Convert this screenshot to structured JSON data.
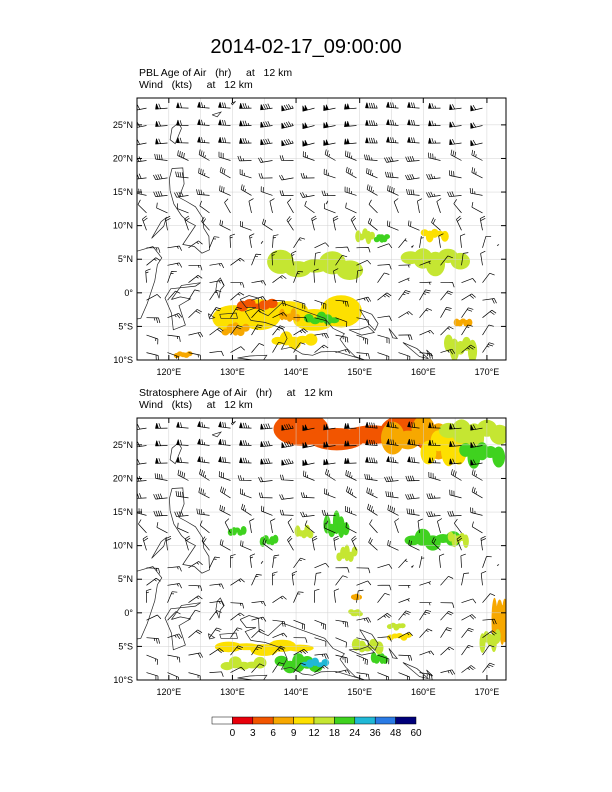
{
  "title": "2014-02-17_09:00:00",
  "chart_data": [
    {
      "type": "heatmap",
      "title": "PBL Age of Air   (hr)     at   12 km",
      "subtitle": "Wind   (kts)     at   12 km",
      "x_tick_labels": [
        "120°E",
        "130°E",
        "140°E",
        "150°E",
        "160°E",
        "170°E"
      ],
      "x_ticks": [
        120,
        130,
        140,
        150,
        160,
        170
      ],
      "y_tick_labels": [
        "10°S",
        "5°S",
        "0°",
        "5°N",
        "10°N",
        "15°N",
        "20°N",
        "25°N"
      ],
      "y_ticks": [
        -10,
        -5,
        0,
        5,
        10,
        15,
        20,
        25
      ],
      "xlim": [
        115,
        173
      ],
      "ylim": [
        -10,
        29
      ],
      "grid": true,
      "regions": [
        {
          "lon": [
            136.2,
            149.8
          ],
          "lat": [
            2.2,
            5.8
          ],
          "age_hr": 12
        },
        {
          "lon": [
            149.5,
            152.2
          ],
          "lat": [
            7.5,
            9.5
          ],
          "age_hr": 12
        },
        {
          "lon": [
            152.5,
            154.5
          ],
          "lat": [
            7.5,
            8.8
          ],
          "age_hr": 18
        },
        {
          "lon": [
            157.0,
            166.8
          ],
          "lat": [
            3.0,
            6.8
          ],
          "age_hr": 12
        },
        {
          "lon": [
            159.8,
            163.8
          ],
          "lat": [
            7.8,
            9.6
          ],
          "age_hr": 9
        },
        {
          "lon": [
            128.0,
            149.2
          ],
          "lat": [
            -5.6,
            -0.8
          ],
          "age_hr": 9
        },
        {
          "lon": [
            131.0,
            136.8
          ],
          "lat": [
            -2.6,
            -1.0
          ],
          "age_hr": 3
        },
        {
          "lon": [
            137.5,
            140.5
          ],
          "lat": [
            -4.4,
            -2.6
          ],
          "age_hr": 6
        },
        {
          "lon": [
            141.5,
            146.5
          ],
          "lat": [
            -4.8,
            -3.0
          ],
          "age_hr": 18
        },
        {
          "lon": [
            128.5,
            132.5
          ],
          "lat": [
            -6.5,
            -4.5
          ],
          "age_hr": 6
        },
        {
          "lon": [
            136.5,
            143.0
          ],
          "lat": [
            -8.2,
            -6.0
          ],
          "age_hr": 9
        },
        {
          "lon": [
            163.5,
            168.2
          ],
          "lat": [
            -9.8,
            -6.4
          ],
          "age_hr": 12
        },
        {
          "lon": [
            165.0,
            167.5
          ],
          "lat": [
            -5.0,
            -3.8
          ],
          "age_hr": 6
        },
        {
          "lon": [
            121.0,
            123.5
          ],
          "lat": [
            -9.6,
            -8.8
          ],
          "age_hr": 6
        }
      ]
    },
    {
      "type": "heatmap",
      "title": "Stratosphere Age of Air   (hr)     at   12 km",
      "subtitle": "Wind   (kts)     at   12 km",
      "x_tick_labels": [
        "120°E",
        "130°E",
        "140°E",
        "150°E",
        "160°E",
        "170°E"
      ],
      "x_ticks": [
        120,
        130,
        140,
        150,
        160,
        170
      ],
      "y_tick_labels": [
        "10°S",
        "5°S",
        "0°",
        "5°N",
        "10°N",
        "15°N",
        "20°N",
        "25°N"
      ],
      "y_ticks": [
        -10,
        -5,
        0,
        5,
        10,
        15,
        20,
        25
      ],
      "xlim": [
        115,
        173
      ],
      "ylim": [
        -10,
        29
      ],
      "grid": true,
      "regions": [
        {
          "lon": [
            138.0,
            166.0
          ],
          "lat": [
            24.0,
            29.0
          ],
          "age_hr": 3
        },
        {
          "lon": [
            154.0,
            166.0
          ],
          "lat": [
            23.5,
            29.0
          ],
          "age_hr": 6
        },
        {
          "lon": [
            160.0,
            168.0
          ],
          "lat": [
            22.0,
            27.5
          ],
          "age_hr": 9
        },
        {
          "lon": [
            163.0,
            173.0
          ],
          "lat": [
            24.5,
            29.0
          ],
          "age_hr": 12
        },
        {
          "lon": [
            166.0,
            172.5
          ],
          "lat": [
            22.0,
            25.5
          ],
          "age_hr": 18
        },
        {
          "lon": [
            129.5,
            132.0
          ],
          "lat": [
            11.5,
            12.8
          ],
          "age_hr": 18
        },
        {
          "lon": [
            134.5,
            137.0
          ],
          "lat": [
            10.0,
            11.5
          ],
          "age_hr": 18
        },
        {
          "lon": [
            140.0,
            142.5
          ],
          "lat": [
            11.0,
            12.8
          ],
          "age_hr": 12
        },
        {
          "lon": [
            144.5,
            148.2
          ],
          "lat": [
            11.0,
            14.8
          ],
          "age_hr": 18
        },
        {
          "lon": [
            146.5,
            149.5
          ],
          "lat": [
            7.5,
            10.0
          ],
          "age_hr": 12
        },
        {
          "lon": [
            157.5,
            165.5
          ],
          "lat": [
            9.5,
            12.2
          ],
          "age_hr": 18
        },
        {
          "lon": [
            164.0,
            167.0
          ],
          "lat": [
            10.0,
            12.0
          ],
          "age_hr": 12
        },
        {
          "lon": [
            171.0,
            173.0
          ],
          "lat": [
            -4.5,
            2.5
          ],
          "age_hr": 6
        },
        {
          "lon": [
            169.0,
            172.0
          ],
          "lat": [
            -5.5,
            -2.5
          ],
          "age_hr": 12
        },
        {
          "lon": [
            128.0,
            142.0
          ],
          "lat": [
            -6.2,
            -4.2
          ],
          "age_hr": 9
        },
        {
          "lon": [
            137.0,
            143.8
          ],
          "lat": [
            -9.0,
            -6.2
          ],
          "age_hr": 18
        },
        {
          "lon": [
            141.0,
            145.0
          ],
          "lat": [
            -8.2,
            -6.8
          ],
          "age_hr": 24
        },
        {
          "lon": [
            128.5,
            135.0
          ],
          "lat": [
            -8.6,
            -6.8
          ],
          "age_hr": 12
        },
        {
          "lon": [
            149.0,
            153.5
          ],
          "lat": [
            -6.0,
            -4.0
          ],
          "age_hr": 12
        },
        {
          "lon": [
            152.0,
            154.2
          ],
          "lat": [
            -7.6,
            -6.0
          ],
          "age_hr": 18
        },
        {
          "lon": [
            154.5,
            158.0
          ],
          "lat": [
            -4.0,
            -3.0
          ],
          "age_hr": 9
        },
        {
          "lon": [
            154.5,
            157.0
          ],
          "lat": [
            -2.5,
            -1.5
          ],
          "age_hr": 12
        },
        {
          "lon": [
            148.5,
            150.2
          ],
          "lat": [
            -0.5,
            0.5
          ],
          "age_hr": 12
        },
        {
          "lon": [
            149.0,
            150.0
          ],
          "lat": [
            2.0,
            2.7
          ],
          "age_hr": 6
        }
      ]
    }
  ],
  "colorbar": {
    "labels": [
      "0",
      "3",
      "6",
      "9",
      "12",
      "18",
      "24",
      "36",
      "48",
      "60"
    ],
    "colors": [
      "#ffffff",
      "#e8000b",
      "#f25500",
      "#f7a800",
      "#fde000",
      "#c5e632",
      "#3fd21f",
      "#20b8d6",
      "#2a7be5",
      "#00007a"
    ]
  }
}
